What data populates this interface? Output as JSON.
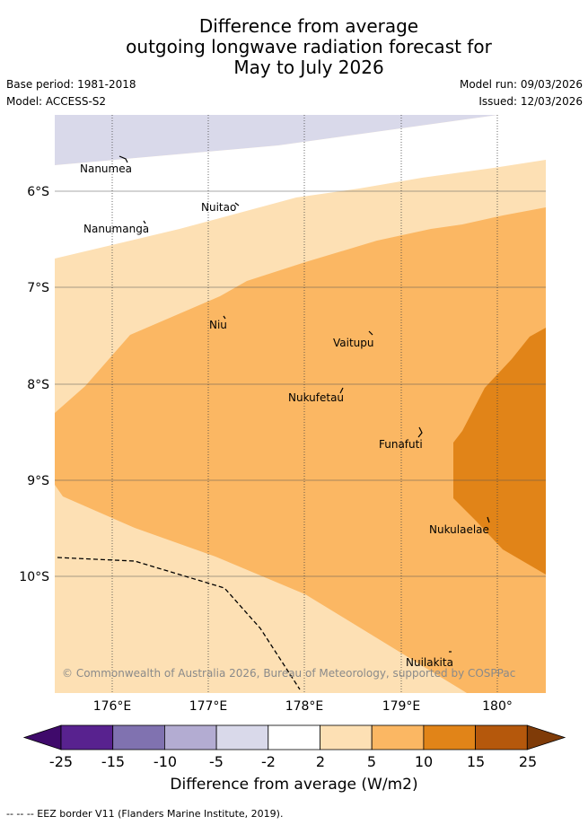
{
  "title": {
    "line1": "Difference from average",
    "line2": "outgoing longwave radiation forecast for",
    "line3": "May to July 2026"
  },
  "meta": {
    "base_period": "Base period: 1981-2018",
    "model": "Model: ACCESS-S2",
    "model_run": "Model run: 09/03/2026",
    "issued": "Issued: 12/03/2026"
  },
  "map": {
    "lat_labels": [
      "6°S",
      "7°S",
      "8°S",
      "9°S",
      "10°S"
    ],
    "lon_labels": [
      "176°E",
      "177°E",
      "178°E",
      "179°E",
      "180°"
    ],
    "places": [
      "Nanumea",
      "Nuitao",
      "Nanumanga",
      "Niu",
      "Vaitupu",
      "Nukufetau",
      "Funafuti",
      "Nukulaelae",
      "Nuilakita"
    ],
    "copyright": "© Commonwealth of Australia 2026, Bureau of Meteorology, supported by COSPPac"
  },
  "colorbar": {
    "ticks": [
      "-25",
      "-15",
      "-10",
      "-5",
      "-2",
      "2",
      "5",
      "10",
      "15",
      "25"
    ],
    "colors": [
      "#3f0a6b",
      "#58228f",
      "#8072b0",
      "#b3acd2",
      "#d9d9ea",
      "#ffffff",
      "#fde0b4",
      "#fbb763",
      "#e18418",
      "#b5580c",
      "#7f3b08"
    ],
    "label": "Difference from average (W/m2)"
  },
  "footer": "--  --  -- EEZ border V11 (Flanders Marine Institute, 2019)."
}
